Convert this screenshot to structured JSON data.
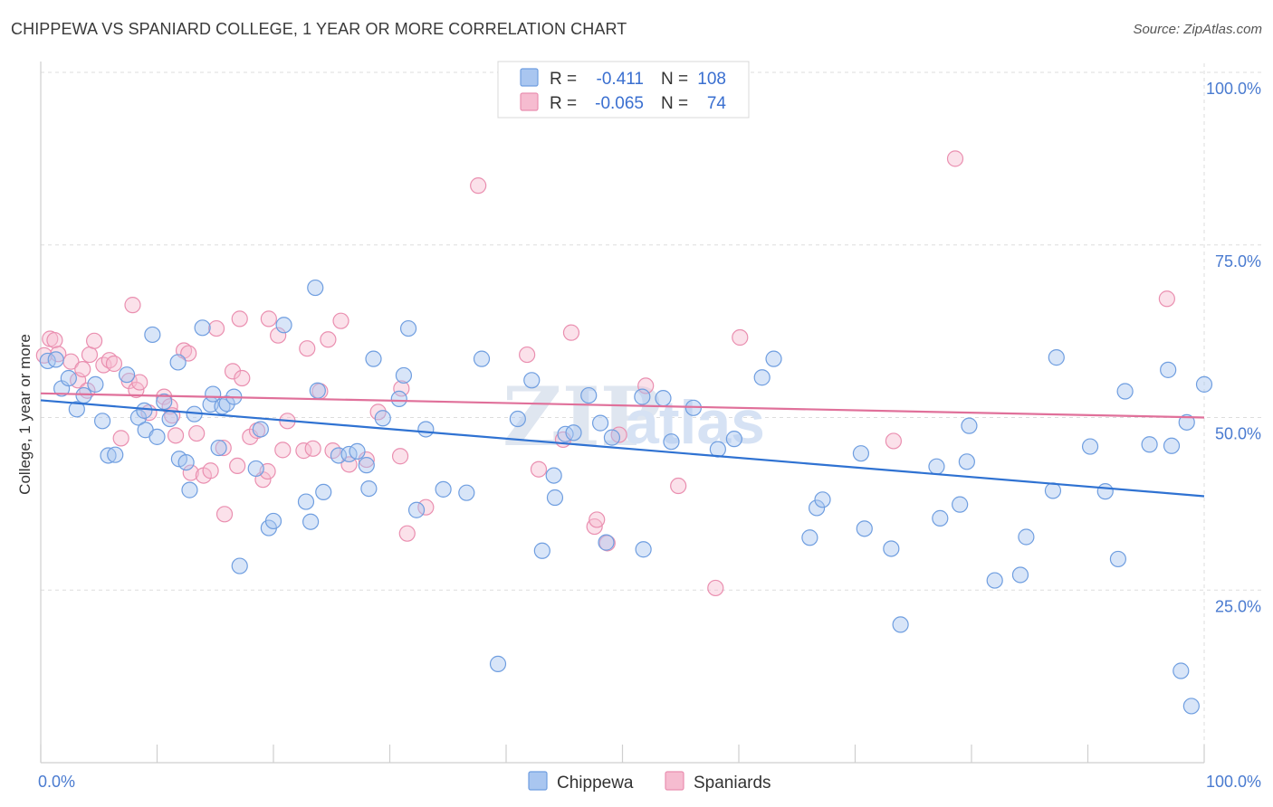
{
  "title": "CHIPPEWA VS SPANIARD COLLEGE, 1 YEAR OR MORE CORRELATION CHART",
  "source": "Source: ZipAtlas.com",
  "watermark": {
    "zip": "ZIP",
    "atlas": "atlas"
  },
  "colors": {
    "chippewa_fill": "#a9c6f0",
    "chippewa_stroke": "#6f9ee0",
    "chippewa_line": "#2f72d2",
    "spaniards_fill": "#f6bcd0",
    "spaniards_stroke": "#ea8fb0",
    "spaniards_line": "#e0709a",
    "grid": "#dddddd",
    "tick_text": "#4a7bd0"
  },
  "legend": {
    "rows": [
      {
        "r_label": "R =",
        "r_value": "-0.411",
        "n_label": "N =",
        "n_value": "108"
      },
      {
        "r_label": "R =",
        "r_value": "-0.065",
        "n_label": "N =",
        "n_value": "74"
      }
    ]
  },
  "bottom_legend": {
    "chippewa": "Chippewa",
    "spaniards": "Spaniards"
  },
  "chart_data": {
    "type": "scatter",
    "title": "CHIPPEWA VS SPANIARD COLLEGE, 1 YEAR OR MORE CORRELATION CHART",
    "xlabel": "",
    "ylabel": "College, 1 year or more",
    "xlim": [
      0,
      100
    ],
    "ylim": [
      0,
      100
    ],
    "x_tick_labels": [
      "0.0%",
      "100.0%"
    ],
    "y_tick_labels": [
      "25.0%",
      "50.0%",
      "75.0%",
      "100.0%"
    ],
    "y_ticks": [
      25,
      50,
      75,
      100
    ],
    "grid": true,
    "legend_position": "top-center",
    "series": [
      {
        "name": "Chippewa",
        "r": -0.411,
        "n": 108,
        "trend": {
          "x": [
            0,
            100
          ],
          "y": [
            52.5,
            38.6
          ]
        },
        "points": [
          [
            0.6,
            58.2
          ],
          [
            1.3,
            58.4
          ],
          [
            1.8,
            54.2
          ],
          [
            2.4,
            55.7
          ],
          [
            3.1,
            51.2
          ],
          [
            3.7,
            53.2
          ],
          [
            4.7,
            54.8
          ],
          [
            5.3,
            49.5
          ],
          [
            5.8,
            44.5
          ],
          [
            6.4,
            44.6
          ],
          [
            7.4,
            56.2
          ],
          [
            8.4,
            50.0
          ],
          [
            8.9,
            51.0
          ],
          [
            9.0,
            48.2
          ],
          [
            9.6,
            62.0
          ],
          [
            10.0,
            47.2
          ],
          [
            10.6,
            52.3
          ],
          [
            11.1,
            49.8
          ],
          [
            11.8,
            58.0
          ],
          [
            11.9,
            44.0
          ],
          [
            12.5,
            43.5
          ],
          [
            12.8,
            39.5
          ],
          [
            13.2,
            50.5
          ],
          [
            13.9,
            63.0
          ],
          [
            14.6,
            51.9
          ],
          [
            14.8,
            53.4
          ],
          [
            15.3,
            45.6
          ],
          [
            15.6,
            51.6
          ],
          [
            16.0,
            52.0
          ],
          [
            16.6,
            53.0
          ],
          [
            17.1,
            28.5
          ],
          [
            18.5,
            42.6
          ],
          [
            18.9,
            48.3
          ],
          [
            19.6,
            34.0
          ],
          [
            20.0,
            35.0
          ],
          [
            20.9,
            63.4
          ],
          [
            22.8,
            37.8
          ],
          [
            23.2,
            34.9
          ],
          [
            23.6,
            68.8
          ],
          [
            23.8,
            53.9
          ],
          [
            24.3,
            39.2
          ],
          [
            25.6,
            44.5
          ],
          [
            26.5,
            44.7
          ],
          [
            27.2,
            45.1
          ],
          [
            28.0,
            43.1
          ],
          [
            28.2,
            39.7
          ],
          [
            28.6,
            58.5
          ],
          [
            29.4,
            49.9
          ],
          [
            30.8,
            52.7
          ],
          [
            31.2,
            56.1
          ],
          [
            31.6,
            62.9
          ],
          [
            32.3,
            36.6
          ],
          [
            33.1,
            48.3
          ],
          [
            34.6,
            39.6
          ],
          [
            36.6,
            39.1
          ],
          [
            37.9,
            58.5
          ],
          [
            39.3,
            14.3
          ],
          [
            41.0,
            49.8
          ],
          [
            42.2,
            55.4
          ],
          [
            43.1,
            30.7
          ],
          [
            44.1,
            41.6
          ],
          [
            44.2,
            38.4
          ],
          [
            45.1,
            47.6
          ],
          [
            45.8,
            47.8
          ],
          [
            47.1,
            53.2
          ],
          [
            48.1,
            49.2
          ],
          [
            48.6,
            31.9
          ],
          [
            49.1,
            47.1
          ],
          [
            51.7,
            53.0
          ],
          [
            51.8,
            30.9
          ],
          [
            53.5,
            52.8
          ],
          [
            54.2,
            46.5
          ],
          [
            56.1,
            51.4
          ],
          [
            58.2,
            45.4
          ],
          [
            59.6,
            46.9
          ],
          [
            62.0,
            55.8
          ],
          [
            63.0,
            58.5
          ],
          [
            66.1,
            32.6
          ],
          [
            66.7,
            36.9
          ],
          [
            67.2,
            38.1
          ],
          [
            70.5,
            44.8
          ],
          [
            70.8,
            33.9
          ],
          [
            73.1,
            31.0
          ],
          [
            73.9,
            20.0
          ],
          [
            77.0,
            42.9
          ],
          [
            77.3,
            35.4
          ],
          [
            79.0,
            37.4
          ],
          [
            79.6,
            43.6
          ],
          [
            79.8,
            48.8
          ],
          [
            82.0,
            26.4
          ],
          [
            84.2,
            27.2
          ],
          [
            84.7,
            32.7
          ],
          [
            87.0,
            39.4
          ],
          [
            87.3,
            58.7
          ],
          [
            90.2,
            45.8
          ],
          [
            91.5,
            39.3
          ],
          [
            92.6,
            29.5
          ],
          [
            93.2,
            53.8
          ],
          [
            95.3,
            46.1
          ],
          [
            96.9,
            56.9
          ],
          [
            97.2,
            45.9
          ],
          [
            98.0,
            13.3
          ],
          [
            98.5,
            49.3
          ],
          [
            98.9,
            8.2
          ],
          [
            100.0,
            54.8
          ]
        ]
      },
      {
        "name": "Spaniards",
        "r": -0.065,
        "n": 74,
        "trend": {
          "x": [
            0,
            100
          ],
          "y": [
            53.5,
            50.0
          ]
        },
        "points": [
          [
            0.3,
            59.0
          ],
          [
            0.8,
            61.4
          ],
          [
            1.2,
            61.2
          ],
          [
            1.5,
            59.2
          ],
          [
            2.6,
            58.1
          ],
          [
            3.2,
            55.4
          ],
          [
            3.6,
            57.0
          ],
          [
            4.0,
            53.9
          ],
          [
            4.2,
            59.1
          ],
          [
            4.6,
            61.1
          ],
          [
            5.4,
            57.6
          ],
          [
            5.9,
            58.3
          ],
          [
            6.3,
            57.8
          ],
          [
            6.9,
            47.0
          ],
          [
            7.6,
            55.3
          ],
          [
            7.9,
            66.3
          ],
          [
            8.2,
            54.0
          ],
          [
            8.5,
            55.1
          ],
          [
            9.3,
            50.7
          ],
          [
            10.6,
            53.0
          ],
          [
            11.1,
            51.6
          ],
          [
            11.3,
            50.3
          ],
          [
            11.6,
            47.4
          ],
          [
            12.3,
            59.7
          ],
          [
            12.7,
            59.3
          ],
          [
            12.9,
            42.0
          ],
          [
            13.4,
            47.7
          ],
          [
            14.0,
            41.6
          ],
          [
            14.6,
            42.3
          ],
          [
            15.1,
            62.9
          ],
          [
            15.7,
            45.6
          ],
          [
            15.8,
            36.0
          ],
          [
            16.5,
            56.7
          ],
          [
            16.9,
            43.0
          ],
          [
            17.1,
            64.3
          ],
          [
            17.3,
            55.7
          ],
          [
            18.0,
            47.2
          ],
          [
            18.6,
            48.1
          ],
          [
            19.1,
            41.0
          ],
          [
            19.5,
            42.2
          ],
          [
            19.6,
            64.3
          ],
          [
            20.4,
            61.9
          ],
          [
            20.8,
            45.3
          ],
          [
            21.2,
            49.5
          ],
          [
            22.6,
            45.2
          ],
          [
            22.9,
            60.0
          ],
          [
            23.4,
            45.5
          ],
          [
            24.0,
            53.8
          ],
          [
            24.7,
            61.3
          ],
          [
            25.1,
            45.2
          ],
          [
            25.8,
            64.0
          ],
          [
            26.5,
            43.2
          ],
          [
            28.0,
            43.9
          ],
          [
            29.0,
            50.8
          ],
          [
            30.9,
            44.4
          ],
          [
            31.0,
            54.2
          ],
          [
            31.5,
            33.2
          ],
          [
            33.1,
            37.0
          ],
          [
            37.6,
            83.6
          ],
          [
            41.8,
            59.1
          ],
          [
            42.8,
            42.5
          ],
          [
            44.9,
            46.8
          ],
          [
            45.6,
            62.3
          ],
          [
            47.6,
            34.2
          ],
          [
            47.8,
            35.2
          ],
          [
            48.7,
            31.8
          ],
          [
            49.7,
            47.5
          ],
          [
            52.0,
            54.6
          ],
          [
            54.8,
            40.1
          ],
          [
            58.0,
            25.3
          ],
          [
            60.1,
            61.6
          ],
          [
            73.3,
            46.6
          ],
          [
            78.6,
            87.5
          ],
          [
            96.8,
            67.2
          ]
        ]
      }
    ]
  }
}
